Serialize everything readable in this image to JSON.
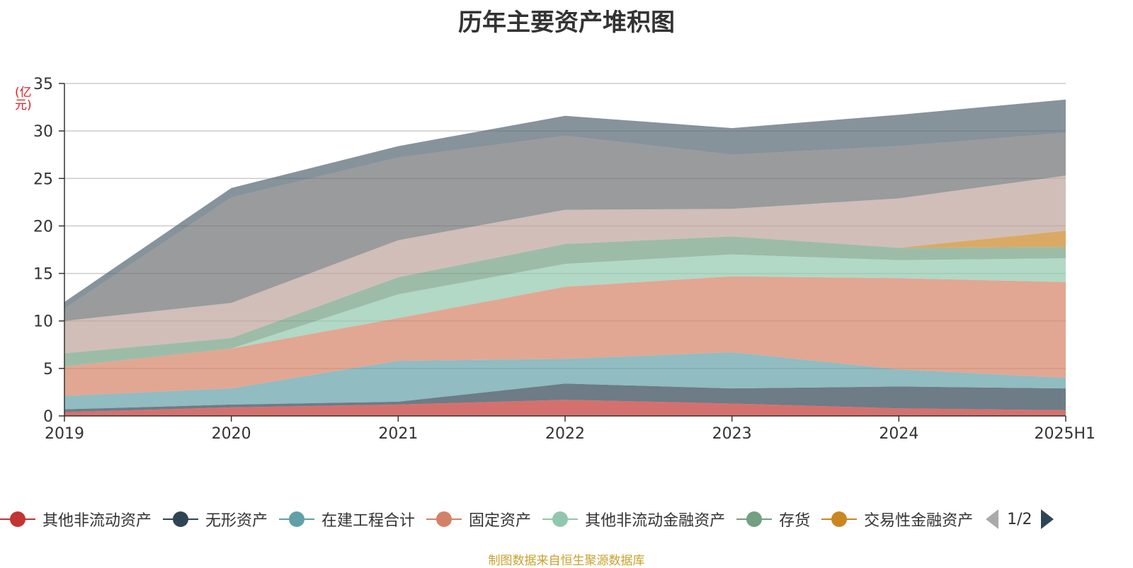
{
  "chart_data": {
    "type": "area",
    "stacked": true,
    "title": "历年主要资产堆积图",
    "y_unit": "(亿元)",
    "x": [
      "2019",
      "2020",
      "2021",
      "2022",
      "2023",
      "2024",
      "2025H1"
    ],
    "ylim": [
      0,
      35
    ],
    "y_ticks": [
      "0",
      "5",
      "10",
      "15",
      "20",
      "25",
      "30",
      "35"
    ],
    "grid": true,
    "legend_position": "bottom",
    "series": [
      {
        "name": "其他非流动资产",
        "color": "#c23531",
        "values": [
          0.4,
          0.9,
          1.2,
          1.7,
          1.3,
          0.8,
          0.6
        ]
      },
      {
        "name": "无形资产",
        "color": "#2f4554",
        "values": [
          0.3,
          0.3,
          0.3,
          1.7,
          1.6,
          2.3,
          2.3
        ]
      },
      {
        "name": "在建工程合计",
        "color": "#61a0a8",
        "values": [
          1.4,
          1.7,
          4.3,
          2.6,
          3.8,
          1.8,
          1.1
        ]
      },
      {
        "name": "固定资产",
        "color": "#d48265",
        "values": [
          3.1,
          4.2,
          4.5,
          7.6,
          8.0,
          9.6,
          10.1
        ]
      },
      {
        "name": "其他非流动金融资产",
        "color": "#91c7ae",
        "values": [
          0.0,
          0.0,
          2.5,
          2.4,
          2.3,
          1.9,
          2.5
        ]
      },
      {
        "name": "存货",
        "color": "#749f83",
        "values": [
          1.4,
          1.1,
          1.8,
          2.1,
          1.9,
          1.3,
          1.2
        ]
      },
      {
        "name": "交易性金融资产",
        "color": "#ca8622",
        "values": [
          0.0,
          0.0,
          0.0,
          0.0,
          0.0,
          0.0,
          1.7
        ]
      },
      {
        "name": "",
        "color": "#bda29a",
        "values": [
          3.4,
          3.7,
          3.9,
          3.6,
          2.9,
          5.2,
          5.8
        ]
      },
      {
        "name": "",
        "color": "#6e7074",
        "values": [
          1.3,
          11.1,
          8.7,
          7.8,
          5.7,
          5.5,
          4.5
        ]
      },
      {
        "name": "",
        "color": "#546570",
        "values": [
          0.7,
          1.0,
          1.2,
          2.1,
          2.8,
          3.3,
          3.5
        ]
      }
    ]
  },
  "legend": {
    "items": [
      {
        "label": "其他非流动资产",
        "color": "#c23531"
      },
      {
        "label": "无形资产",
        "color": "#2f4554"
      },
      {
        "label": "在建工程合计",
        "color": "#61a0a8"
      },
      {
        "label": "固定资产",
        "color": "#d48265"
      },
      {
        "label": "其他非流动金融资产",
        "color": "#91c7ae"
      },
      {
        "label": "存货",
        "color": "#749f83"
      },
      {
        "label": "交易性金融资产",
        "color": "#ca8622"
      }
    ],
    "page_text": "1/2"
  },
  "footer": {
    "source_text": "制图数据来自恒生聚源数据库"
  }
}
